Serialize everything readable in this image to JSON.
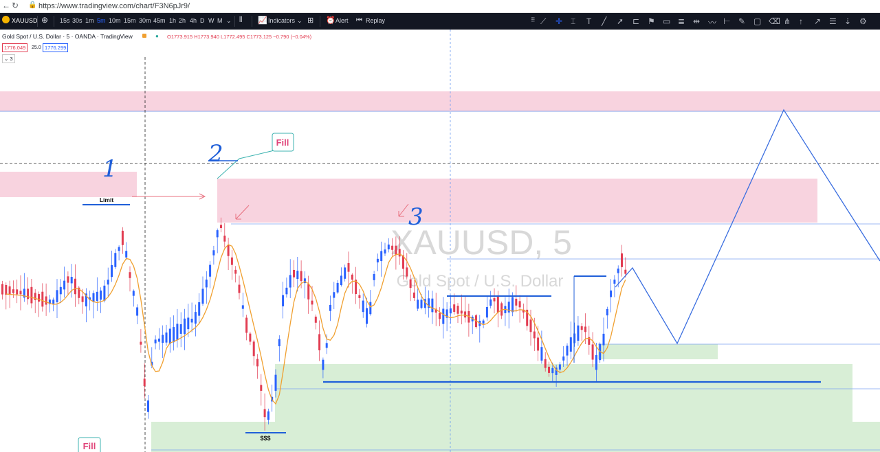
{
  "browser": {
    "url": "https://www.tradingview.com/chart/F3N6pJr9/"
  },
  "toolbar": {
    "symbol": "XAUUSD",
    "intervals": [
      "15s",
      "30s",
      "1m",
      "5m",
      "10m",
      "15m",
      "30m",
      "45m",
      "1h",
      "2h",
      "4h",
      "D",
      "W",
      "M"
    ],
    "selected_interval": "5m",
    "indicators_label": "Indicators",
    "alert_label": "Alert",
    "replay_label": "Replay"
  },
  "legend": {
    "title": "Gold Spot / U.S. Dollar · 5 · OANDA · TradingView",
    "ohlc": "O1773.915 H1773.940 L1772.495 C1773.125 −0.790 (−0.04%)",
    "sell_price": "1776.049",
    "spread": "25.0",
    "buy_price": "1776.299",
    "collapsed_count": "3"
  },
  "watermark": {
    "symbol": "XAUUSD, 5",
    "description": "Gold Spot / U.S. Dollar"
  },
  "annotations": {
    "label_1": "1",
    "label_2": "2",
    "label_3": "3",
    "limit": "Limit",
    "fill_top": "Fill",
    "fill_bottom": "Fill",
    "liquidity": "$$$"
  },
  "colors": {
    "bull": "#2962ff",
    "bear": "#e23d52",
    "ma": "#f0a030",
    "supply_zone": "#f8d3df",
    "demand_zone": "#d8eed6",
    "drawing_blue": "#1f5fd9",
    "fill_label": "#e0457a"
  }
}
